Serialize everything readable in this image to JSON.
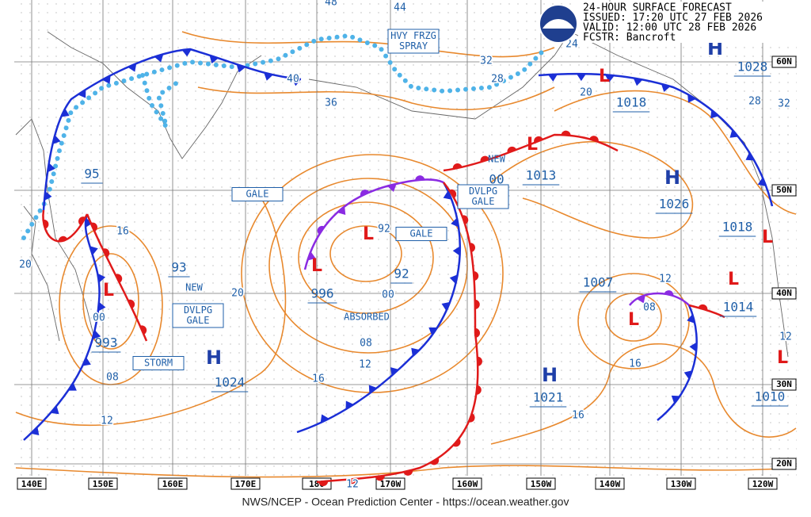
{
  "header": {
    "lines": [
      "24-HOUR SURFACE FORECAST",
      "ISSUED: 17:20 UTC 27 FEB 2026",
      "VALID:  12:00 UTC 28 FEB 2026",
      "FCSTR:  Bancroft"
    ]
  },
  "map": {
    "longitude_labels": [
      "140E",
      "150E",
      "160E",
      "170E",
      "180",
      "170W",
      "160W",
      "150W",
      "140W",
      "130W",
      "120W"
    ],
    "latitude_labels": [
      "60N",
      "50N",
      "40N",
      "30N",
      "20N"
    ],
    "highs": [
      "H",
      "H",
      "H",
      "H"
    ],
    "lows": [
      "L",
      "L",
      "L",
      "L",
      "L",
      "L",
      "L",
      "L",
      "L"
    ],
    "pressure_labels": [
      "1024",
      "1021",
      "1026",
      "1028",
      "993",
      "996",
      "1007",
      "1013",
      "1018",
      "1018",
      "1014",
      "1010",
      "93",
      "95",
      "92",
      "00"
    ],
    "isobar_labels": [
      "48",
      "44",
      "40",
      "36",
      "32",
      "28",
      "24",
      "20",
      "20",
      "20",
      "16",
      "16",
      "16",
      "12",
      "12",
      "12",
      "12",
      "12",
      "08",
      "08",
      "08",
      "00",
      "92",
      "00",
      "28",
      "32",
      "16"
    ],
    "annotations": [
      {
        "lines": [
          "HVY FRZG",
          "SPRAY"
        ]
      },
      {
        "lines": [
          "GALE"
        ]
      },
      {
        "lines": [
          "GALE"
        ]
      },
      {
        "lines": [
          "DVLPG",
          "GALE"
        ]
      },
      {
        "lines": [
          "DVLPG",
          "GALE"
        ]
      },
      {
        "lines": [
          "STORM"
        ]
      },
      {
        "lines": [
          "NEW"
        ]
      },
      {
        "lines": [
          "NEW"
        ]
      },
      {
        "lines": [
          "ABSORBED"
        ]
      }
    ]
  },
  "footer": "NWS/NCEP - Ocean Prediction Center - https://ocean.weather.gov"
}
